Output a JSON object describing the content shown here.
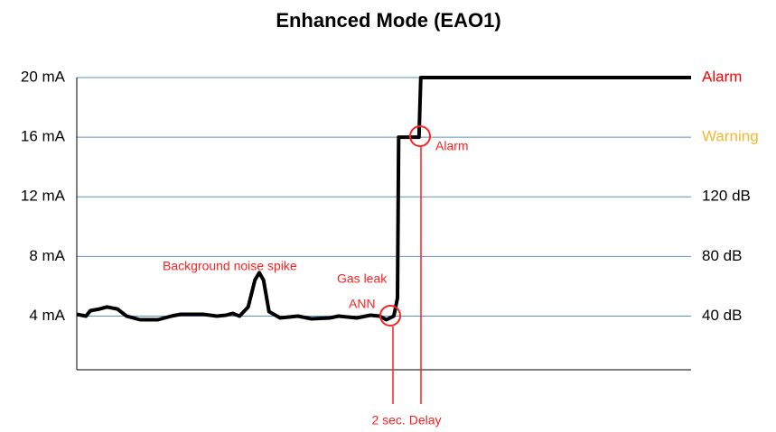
{
  "chart_data": {
    "type": "line",
    "title": "Enhanced Mode (EAO1)",
    "xlim": [
      0,
      100
    ],
    "ylim": [
      0.4,
      20
    ],
    "yticks": [
      {
        "value": 4,
        "label": "4  mA"
      },
      {
        "value": 8,
        "label": "8  mA"
      },
      {
        "value": 12,
        "label": "12 mA"
      },
      {
        "value": 16,
        "label": "16 mA"
      },
      {
        "value": 20,
        "label": "20 mA"
      }
    ],
    "y2lim": [
      0.4,
      20
    ],
    "y2ticks": [
      {
        "value": 4,
        "label": "40  dB"
      },
      {
        "value": 8,
        "label": "80  dB"
      },
      {
        "value": 12,
        "label": "120  dB"
      },
      {
        "value": 16,
        "label": "Warning"
      },
      {
        "value": 20,
        "label": "Alarm"
      }
    ],
    "y2tick_colors": [
      "#000000",
      "#000000",
      "#000000",
      "#f5b82e",
      "#ff0000"
    ],
    "grid": true,
    "grid_color": "#5b8fc7",
    "series": [
      {
        "color": "#000000",
        "x": [
          0,
          1.5,
          2.2,
          3.7,
          4.9,
          6.6,
          8.1,
          10.3,
          13.2,
          15.4,
          16.9,
          20.6,
          22.8,
          24.3,
          25.4,
          26.5,
          27.9,
          29.0,
          29.7,
          30.4,
          31.3,
          33.1,
          36.0,
          38.2,
          41.2,
          42.6,
          45.6,
          47.8,
          49.3,
          50.4,
          51.6,
          52.2,
          52.4,
          55.7,
          56.0,
          100
        ],
        "values": [
          4.12,
          4.0,
          4.36,
          4.48,
          4.61,
          4.48,
          4.0,
          3.76,
          3.76,
          4.0,
          4.12,
          4.12,
          4.0,
          4.06,
          4.18,
          4.0,
          4.61,
          6.42,
          6.91,
          6.42,
          4.3,
          3.88,
          4.0,
          3.82,
          3.88,
          4.0,
          3.88,
          4.06,
          4.0,
          3.76,
          4.0,
          5.21,
          16.0,
          16.0,
          20,
          20
        ]
      }
    ],
    "annotations": [
      "Background noise spike",
      "Gas leak",
      "ANN",
      "Alarm",
      "2 sec. Delay"
    ]
  }
}
